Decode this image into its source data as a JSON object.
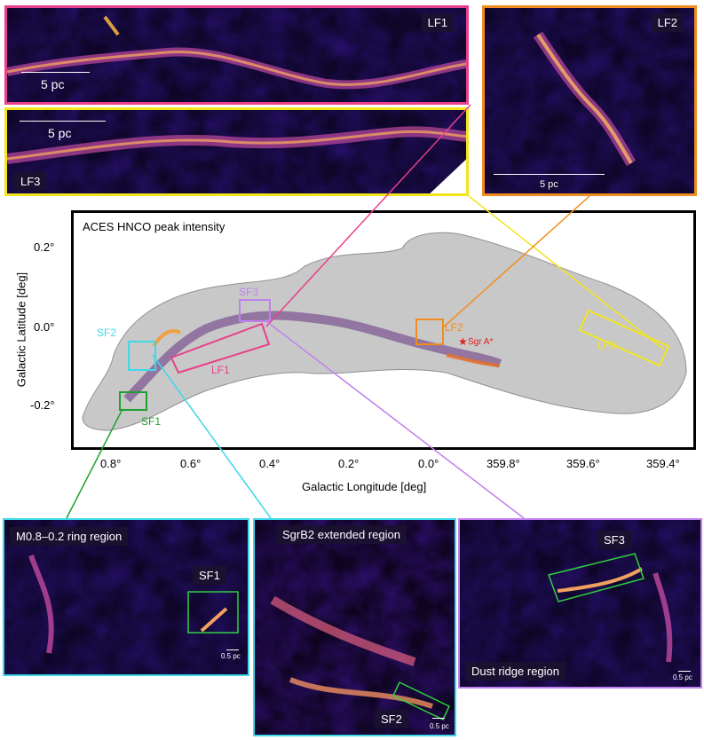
{
  "main_plot": {
    "title": "ACES HNCO peak intensity",
    "xlabel": "Galactic Longitude [deg]",
    "ylabel": "Galactic Latitude [deg]",
    "x_ticks": [
      "0.8°",
      "0.6°",
      "0.4°",
      "0.2°",
      "0.0°",
      "359.8°",
      "359.6°",
      "359.4°"
    ],
    "y_ticks": [
      "0.2°",
      "0.0°",
      "-0.2°"
    ],
    "sgr_a_label": "Sgr A*",
    "colors": {
      "LF1": "#e8408a",
      "LF2": "#f28c1e",
      "LF3": "#f2e51e",
      "SF1": "#1ea02e",
      "SF2": "#3ed8e8",
      "SF3": "#c080f0",
      "sgr_a": "#e02020"
    }
  },
  "regions": {
    "LF1": "LF1",
    "LF2": "LF2",
    "LF3": "LF3",
    "SF1": "SF1",
    "SF2": "SF2",
    "SF3": "SF3"
  },
  "top_panels": {
    "lf1": {
      "tag": "LF1",
      "scale": "5 pc"
    },
    "lf2": {
      "tag": "LF2",
      "scale": "5 pc"
    },
    "lf3": {
      "tag": "LF3",
      "scale": "5 pc"
    }
  },
  "bottom_panels": {
    "left": {
      "title": "M0.8–0.2 ring region",
      "box_tag": "SF1",
      "scale": "0.5 pc"
    },
    "middle": {
      "title": "SgrB2 extended region",
      "box_tag": "SF2",
      "scale": "0.5 pc"
    },
    "right": {
      "title": "Dust ridge region",
      "box_tag": "SF3",
      "scale": "0.5 pc"
    }
  }
}
